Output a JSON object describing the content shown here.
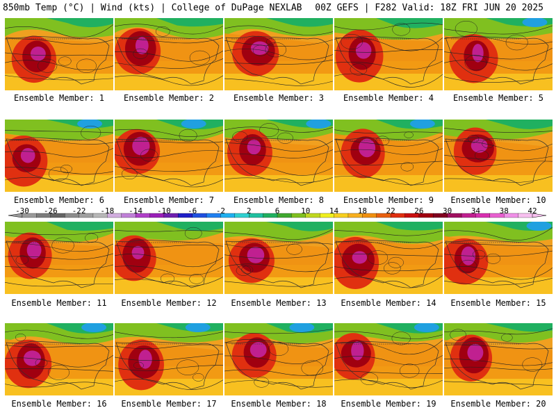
{
  "header": {
    "left": "850mb Temp (°C) | Wind (kts) | College of DuPage NEXLAB",
    "right": "00Z GEFS | F282 Valid: 18Z FRI JUN 20 2025"
  },
  "panels": [
    {
      "label": "Ensemble Member: 1"
    },
    {
      "label": "Ensemble Member: 2"
    },
    {
      "label": "Ensemble Member: 3"
    },
    {
      "label": "Ensemble Member: 4"
    },
    {
      "label": "Ensemble Member: 5"
    },
    {
      "label": "Ensemble Member: 6"
    },
    {
      "label": "Ensemble Member: 7"
    },
    {
      "label": "Ensemble Member: 8"
    },
    {
      "label": "Ensemble Member: 9"
    },
    {
      "label": "Ensemble Member: 10"
    },
    {
      "label": "Ensemble Member: 11"
    },
    {
      "label": "Ensemble Member: 12"
    },
    {
      "label": "Ensemble Member: 13"
    },
    {
      "label": "Ensemble Member: 14"
    },
    {
      "label": "Ensemble Member: 15"
    },
    {
      "label": "Ensemble Member: 16"
    },
    {
      "label": "Ensemble Member: 17"
    },
    {
      "label": "Ensemble Member: 18"
    },
    {
      "label": "Ensemble Member: 19"
    },
    {
      "label": "Ensemble Member: 20"
    }
  ],
  "colorbar": {
    "ticks": [
      "-30",
      "-26",
      "-22",
      "-18",
      "-14",
      "-10",
      "-6",
      "-2",
      "2",
      "6",
      "10",
      "14",
      "18",
      "22",
      "26",
      "30",
      "34",
      "38",
      "42"
    ],
    "colors": [
      "#9a9a9a",
      "#7c7c7c",
      "#646464",
      "#8c8c8c",
      "#a0a0a0",
      "#b8b8b8",
      "#d2aee0",
      "#c080d8",
      "#b040c8",
      "#9a20b8",
      "#7020b0",
      "#2020c8",
      "#2050e0",
      "#2080f0",
      "#20b0f0",
      "#30d0d0",
      "#20c0a0",
      "#20b060",
      "#40a830",
      "#80c020",
      "#c0d820",
      "#f0f020",
      "#f8d020",
      "#f8b020",
      "#f09010",
      "#e86010",
      "#e03010",
      "#c81010",
      "#a00010",
      "#800020",
      "#a01060",
      "#c02090",
      "#d830b0",
      "#e860d0",
      "#f090e8",
      "#f8c0f0"
    ]
  }
}
